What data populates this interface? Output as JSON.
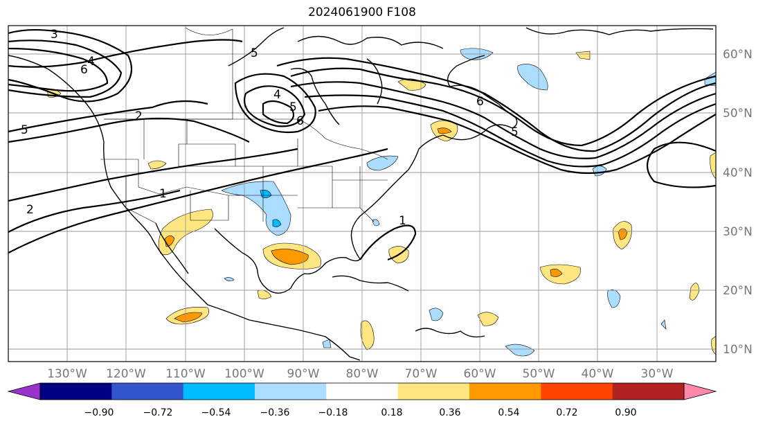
{
  "title": "2024061900 F108",
  "longitude_labels": [
    "130°W",
    "120°W",
    "110°W",
    "100°W",
    "90°W",
    "80°W",
    "70°W",
    "60°W",
    "50°W",
    "40°W",
    "30°W"
  ],
  "latitude_labels": [
    "60°N",
    "50°N",
    "40°N",
    "30°N",
    "20°N",
    "10°N"
  ],
  "colorbar": {
    "tick_labels": [
      "−0.90",
      "−0.72",
      "−0.54",
      "−0.36",
      "−0.18",
      "0.18",
      "0.36",
      "0.54",
      "0.72",
      "0.90"
    ],
    "colors": [
      "#9933cc",
      "#000080",
      "#3355cc",
      "#00bbff",
      "#aaddff",
      "#ffffff",
      "#ffe680",
      "#ff9900",
      "#ff4400",
      "#b22222",
      "#ff88aa"
    ]
  },
  "contour_labels": [
    "3",
    "4",
    "6",
    "5",
    "2",
    "1",
    "2",
    "5",
    "4",
    "5",
    "6",
    "6",
    "5",
    "1"
  ],
  "fill_colors": {
    "yellow": "#ffe680",
    "orange": "#ff9900",
    "lightblue": "#aaddff",
    "blue": "#00bbff"
  }
}
